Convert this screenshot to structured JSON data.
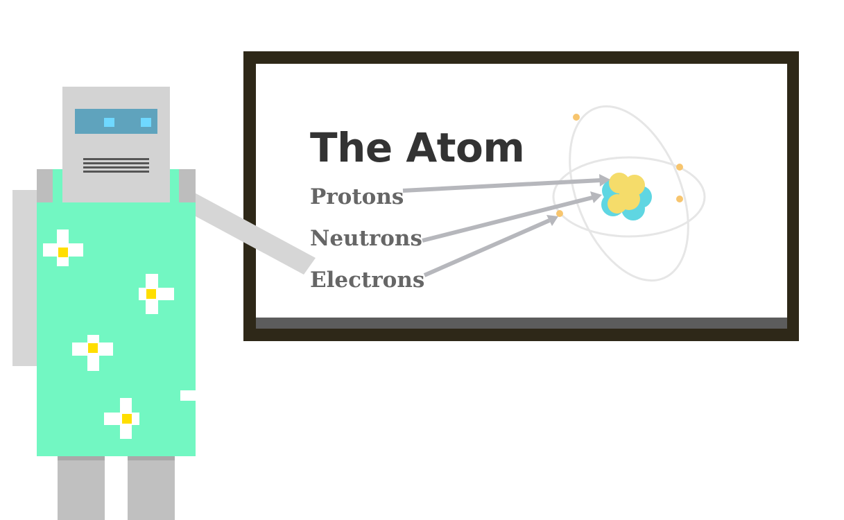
{
  "board": {
    "title": "The Atom",
    "labels": [
      "Protons",
      "Neutrons",
      "Electrons"
    ]
  },
  "icons": {
    "robot": "robot-teacher",
    "board": "whiteboard",
    "atom": "atom-diagram",
    "flower": "flower-icon"
  },
  "colors": {
    "frame": "#2e2818",
    "board": "#ffffff",
    "tray": "#5c5c5c",
    "title_text": "#333333",
    "label_text": "#666666",
    "arrow": "#b6b7bc",
    "orbit": "#e6e6e6",
    "electron": "#f7c56e",
    "proton": "#f5dc6a",
    "neutron": "#5fd6e2",
    "robot_metal": "#d3d3d3",
    "robot_dark_metal": "#bdbdbd",
    "robot_visor": "#5fa3bd",
    "robot_eye": "#6fd8ff",
    "robot_dress": "#72f7c2",
    "flower_petal": "#ffffff",
    "flower_center": "#ffde00"
  }
}
